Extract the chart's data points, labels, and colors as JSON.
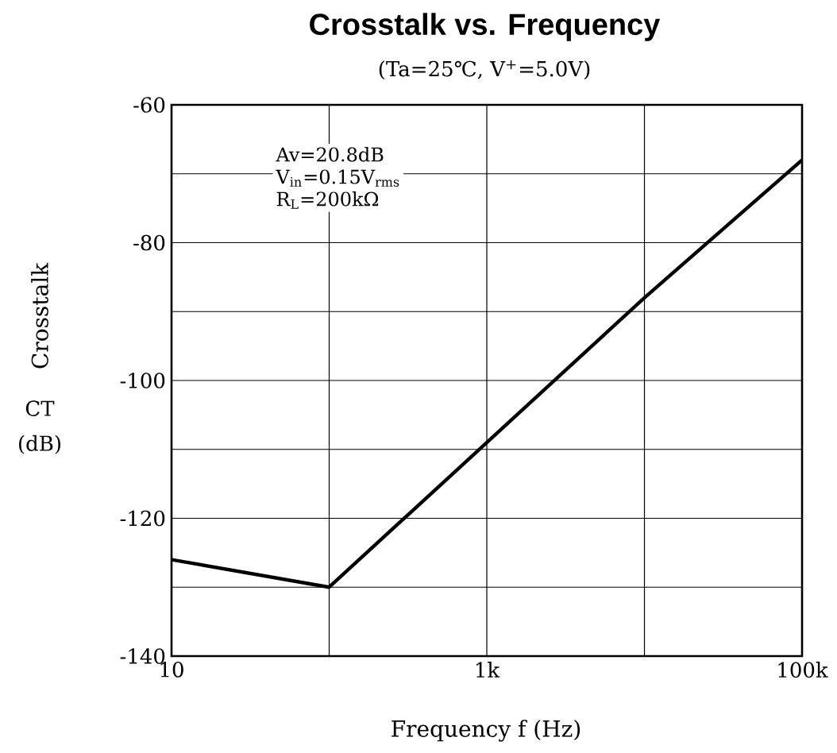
{
  "chart_data": {
    "type": "line",
    "title": "Crosstalk vs. Frequency",
    "subtitle": "(Ta=25℃, V$^{+}$=5.0V)",
    "xlabel": "Frequency f (Hz)",
    "ylabel": "Crosstalk",
    "annotations": [
      "Av=20.8dB",
      "V$_{in}$=0.15V$_{rms}$",
      "R$_{L}$=200kΩ",
      "CT (dB)"
    ],
    "log": "x",
    "grid": true,
    "xlim": [
      10,
      100000
    ],
    "ylim": [
      -140,
      -60
    ],
    "xticks": [
      {
        "value": 10,
        "label": "10"
      },
      {
        "value": 100,
        "label": null
      },
      {
        "value": 1000,
        "label": "1k"
      },
      {
        "value": 10000,
        "label": null
      },
      {
        "value": 100000,
        "label": "100k"
      }
    ],
    "yticks": [
      -140,
      {
        "value": -130,
        "label": null
      },
      -120,
      {
        "value": -110,
        "label": null
      },
      -100,
      {
        "value": -90,
        "label": null
      },
      -80,
      {
        "value": -70,
        "label": null
      },
      -60
    ],
    "series": [
      {
        "color": "#000000",
        "x": [
          10,
          100,
          1000,
          10000,
          100000
        ],
        "values": [
          -126,
          -130,
          -109,
          -88,
          -68
        ]
      }
    ]
  }
}
